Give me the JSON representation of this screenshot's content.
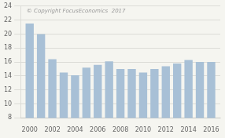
{
  "chart_data": {
    "type": "bar",
    "x": [
      2000,
      2001,
      2002,
      2003,
      2004,
      2005,
      2006,
      2007,
      2008,
      2009,
      2010,
      2011,
      2012,
      2013,
      2014,
      2015,
      2016
    ],
    "values": [
      21.5,
      20.0,
      16.4,
      14.5,
      14.1,
      15.2,
      15.6,
      16.1,
      15.0,
      15.0,
      14.5,
      15.0,
      15.4,
      15.8,
      16.3,
      16.0,
      16.0
    ],
    "color": "#a8c0d6",
    "xlim": [
      1999.2,
      2016.8
    ],
    "xticks": [
      2000,
      2002,
      2004,
      2006,
      2008,
      2010,
      2012,
      2014,
      2016
    ],
    "ylim": [
      8,
      24
    ],
    "yticks": [
      8,
      10,
      12,
      14,
      16,
      18,
      20,
      22,
      24
    ],
    "grid": true,
    "annotations": [
      "© Copyright FocusEconomics  2017"
    ]
  }
}
